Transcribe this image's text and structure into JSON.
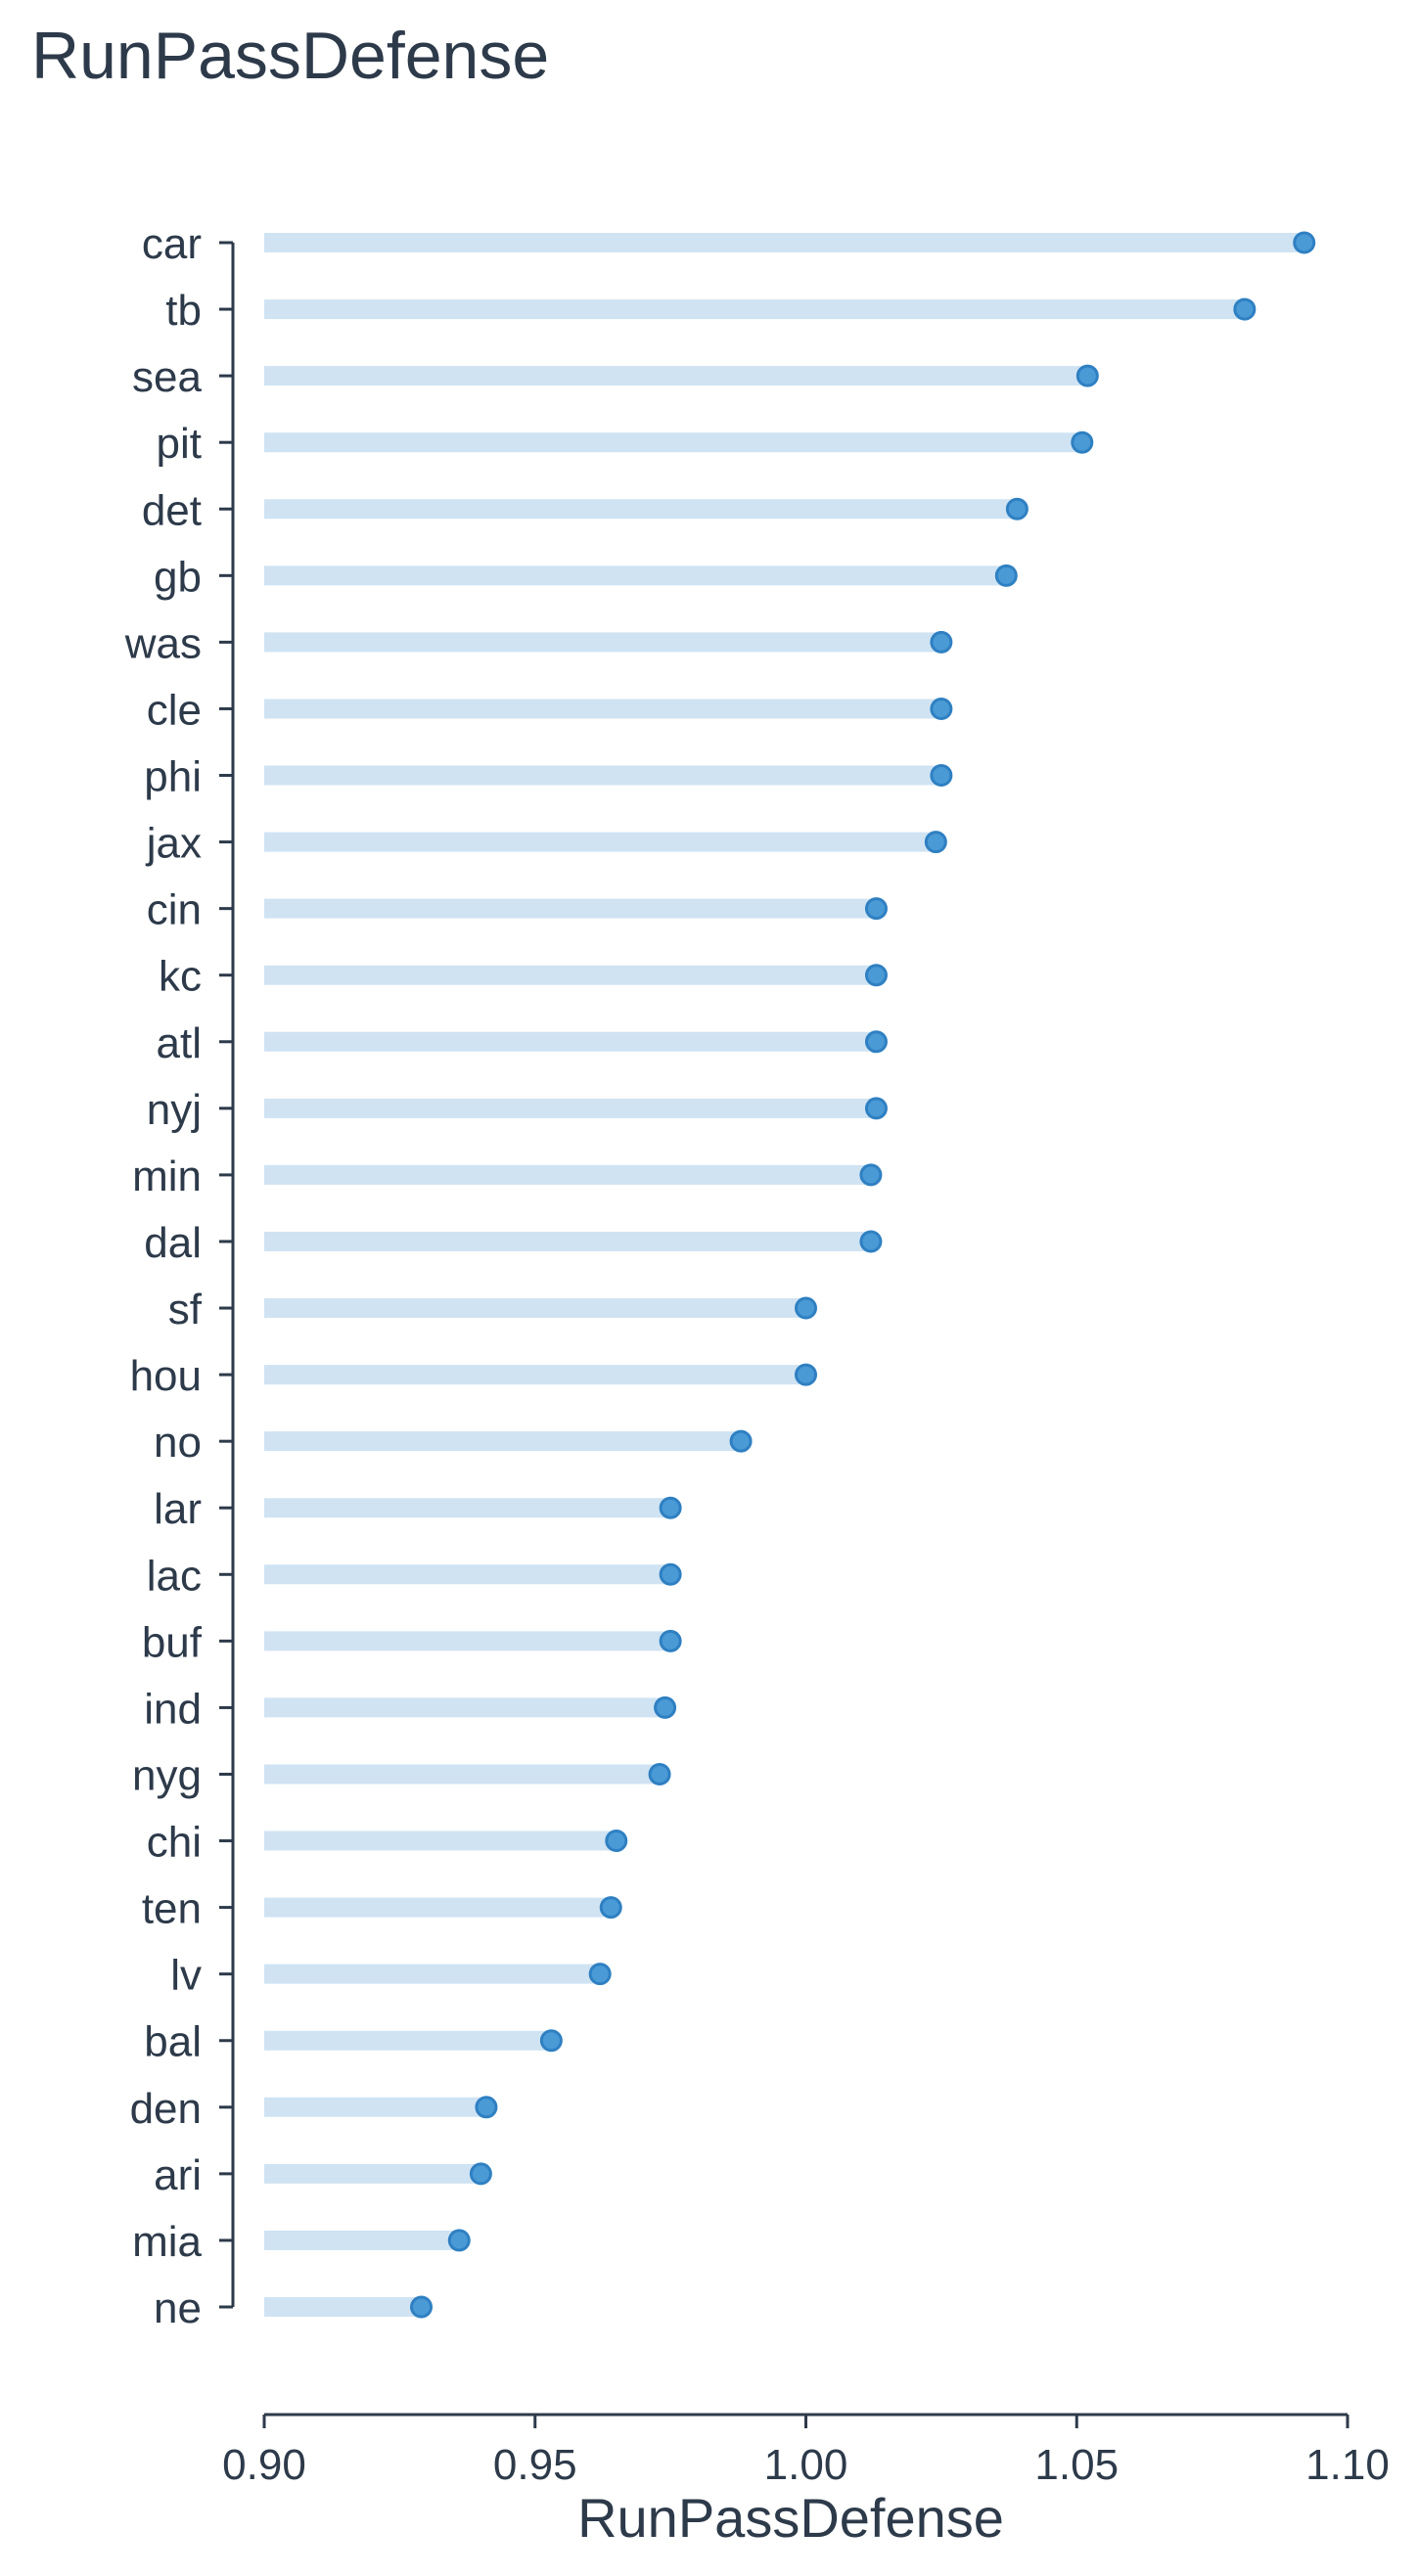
{
  "chart_data": {
    "type": "lollipop",
    "title": "RunPassDefense",
    "xlabel": "RunPassDefense",
    "ylabel": "",
    "xlim": [
      0.9,
      1.1
    ],
    "xticks": [
      "0.90",
      "0.95",
      "1.00",
      "1.05",
      "1.10"
    ],
    "xtick_values": [
      0.9,
      0.95,
      1.0,
      1.05,
      1.1
    ],
    "grid": false,
    "categories": [
      "car",
      "tb",
      "sea",
      "pit",
      "det",
      "gb",
      "was",
      "cle",
      "phi",
      "jax",
      "cin",
      "kc",
      "atl",
      "nyj",
      "min",
      "dal",
      "sf",
      "hou",
      "no",
      "lar",
      "lac",
      "buf",
      "ind",
      "nyg",
      "chi",
      "ten",
      "lv",
      "bal",
      "den",
      "ari",
      "mia",
      "ne"
    ],
    "values": [
      1.092,
      1.081,
      1.052,
      1.051,
      1.039,
      1.037,
      1.025,
      1.025,
      1.025,
      1.024,
      1.013,
      1.013,
      1.013,
      1.013,
      1.012,
      1.012,
      1.0,
      1.0,
      0.988,
      0.975,
      0.975,
      0.975,
      0.974,
      0.973,
      0.965,
      0.964,
      0.962,
      0.953,
      0.941,
      0.94,
      0.936,
      0.929
    ],
    "colors": {
      "stem": "#cfe3f3",
      "dot_fill": "#4a9ad6",
      "dot_stroke": "#2f80c2",
      "axis": "#2d3a4a",
      "text": "#2d3a4a"
    }
  }
}
